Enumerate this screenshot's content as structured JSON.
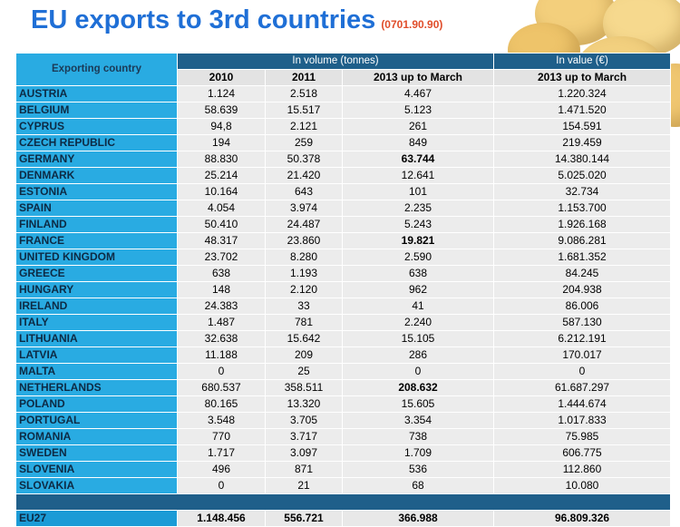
{
  "title": "EU exports to 3rd countries",
  "code": "(0701.90.90)",
  "headers": {
    "country": "Exporting country",
    "volume_group": "In volume (tonnes)",
    "value_group": "In value (€)",
    "y2010": "2010",
    "y2011": "2011",
    "y2013": "2013 up to March",
    "value_2013": "2013 up to March"
  },
  "rows": [
    {
      "country": "AUSTRIA",
      "v2010": "1.124",
      "v2011": "2.518",
      "v2013": "4.467",
      "value": "1.220.324"
    },
    {
      "country": "BELGIUM",
      "v2010": "58.639",
      "v2011": "15.517",
      "v2013": "5.123",
      "value": "1.471.520"
    },
    {
      "country": "CYPRUS",
      "v2010": "94,8",
      "v2011": "2.121",
      "v2013": "261",
      "value": "154.591"
    },
    {
      "country": "CZECH REPUBLIC",
      "v2010": "194",
      "v2011": "259",
      "v2013": "849",
      "value": "219.459"
    },
    {
      "country": "GERMANY",
      "v2010": "88.830",
      "v2011": "50.378",
      "v2013": "63.744",
      "value": "14.380.144",
      "bold2013": true
    },
    {
      "country": "DENMARK",
      "v2010": "25.214",
      "v2011": "21.420",
      "v2013": "12.641",
      "value": "5.025.020"
    },
    {
      "country": "ESTONIA",
      "v2010": "10.164",
      "v2011": "643",
      "v2013": "101",
      "value": "32.734"
    },
    {
      "country": "SPAIN",
      "v2010": "4.054",
      "v2011": "3.974",
      "v2013": "2.235",
      "value": "1.153.700"
    },
    {
      "country": "FINLAND",
      "v2010": "50.410",
      "v2011": "24.487",
      "v2013": "5.243",
      "value": "1.926.168"
    },
    {
      "country": "FRANCE",
      "v2010": "48.317",
      "v2011": "23.860",
      "v2013": "19.821",
      "value": "9.086.281",
      "bold2013": true
    },
    {
      "country": "UNITED KINGDOM",
      "v2010": "23.702",
      "v2011": "8.280",
      "v2013": "2.590",
      "value": "1.681.352"
    },
    {
      "country": "GREECE",
      "v2010": "638",
      "v2011": "1.193",
      "v2013": "638",
      "value": "84.245"
    },
    {
      "country": "HUNGARY",
      "v2010": "148",
      "v2011": "2.120",
      "v2013": "962",
      "value": "204.938"
    },
    {
      "country": "IRELAND",
      "v2010": "24.383",
      "v2011": "33",
      "v2013": "41",
      "value": "86.006"
    },
    {
      "country": "ITALY",
      "v2010": "1.487",
      "v2011": "781",
      "v2013": "2.240",
      "value": "587.130"
    },
    {
      "country": "LITHUANIA",
      "v2010": "32.638",
      "v2011": "15.642",
      "v2013": "15.105",
      "value": "6.212.191"
    },
    {
      "country": "LATVIA",
      "v2010": "11.188",
      "v2011": "209",
      "v2013": "286",
      "value": "170.017"
    },
    {
      "country": "MALTA",
      "v2010": "0",
      "v2011": "25",
      "v2013": "0",
      "value": "0"
    },
    {
      "country": "NETHERLANDS",
      "v2010": "680.537",
      "v2011": "358.511",
      "v2013": "208.632",
      "value": "61.687.297",
      "bold2013": true
    },
    {
      "country": "POLAND",
      "v2010": "80.165",
      "v2011": "13.320",
      "v2013": "15.605",
      "value": "1.444.674"
    },
    {
      "country": "PORTUGAL",
      "v2010": "3.548",
      "v2011": "3.705",
      "v2013": "3.354",
      "value": "1.017.833"
    },
    {
      "country": "ROMANIA",
      "v2010": "770",
      "v2011": "3.717",
      "v2013": "738",
      "value": "75.985"
    },
    {
      "country": "SWEDEN",
      "v2010": "1.717",
      "v2011": "3.097",
      "v2013": "1.709",
      "value": "606.775"
    },
    {
      "country": "SLOVENIA",
      "v2010": "496",
      "v2011": "871",
      "v2013": "536",
      "value": "112.860"
    },
    {
      "country": "SLOVAKIA",
      "v2010": "0",
      "v2011": "21",
      "v2013": "68",
      "value": "10.080"
    }
  ],
  "total": {
    "country": "EU27",
    "v2010": "1.148.456",
    "v2011": "556.721",
    "v2013": "366.988",
    "value": "96.809.326"
  },
  "colors": {
    "title": "#1f6fd6",
    "code": "#e04d2a",
    "country_column": "#29abe2",
    "group_header": "#1f5f8a",
    "cell_background": "#ececec"
  }
}
